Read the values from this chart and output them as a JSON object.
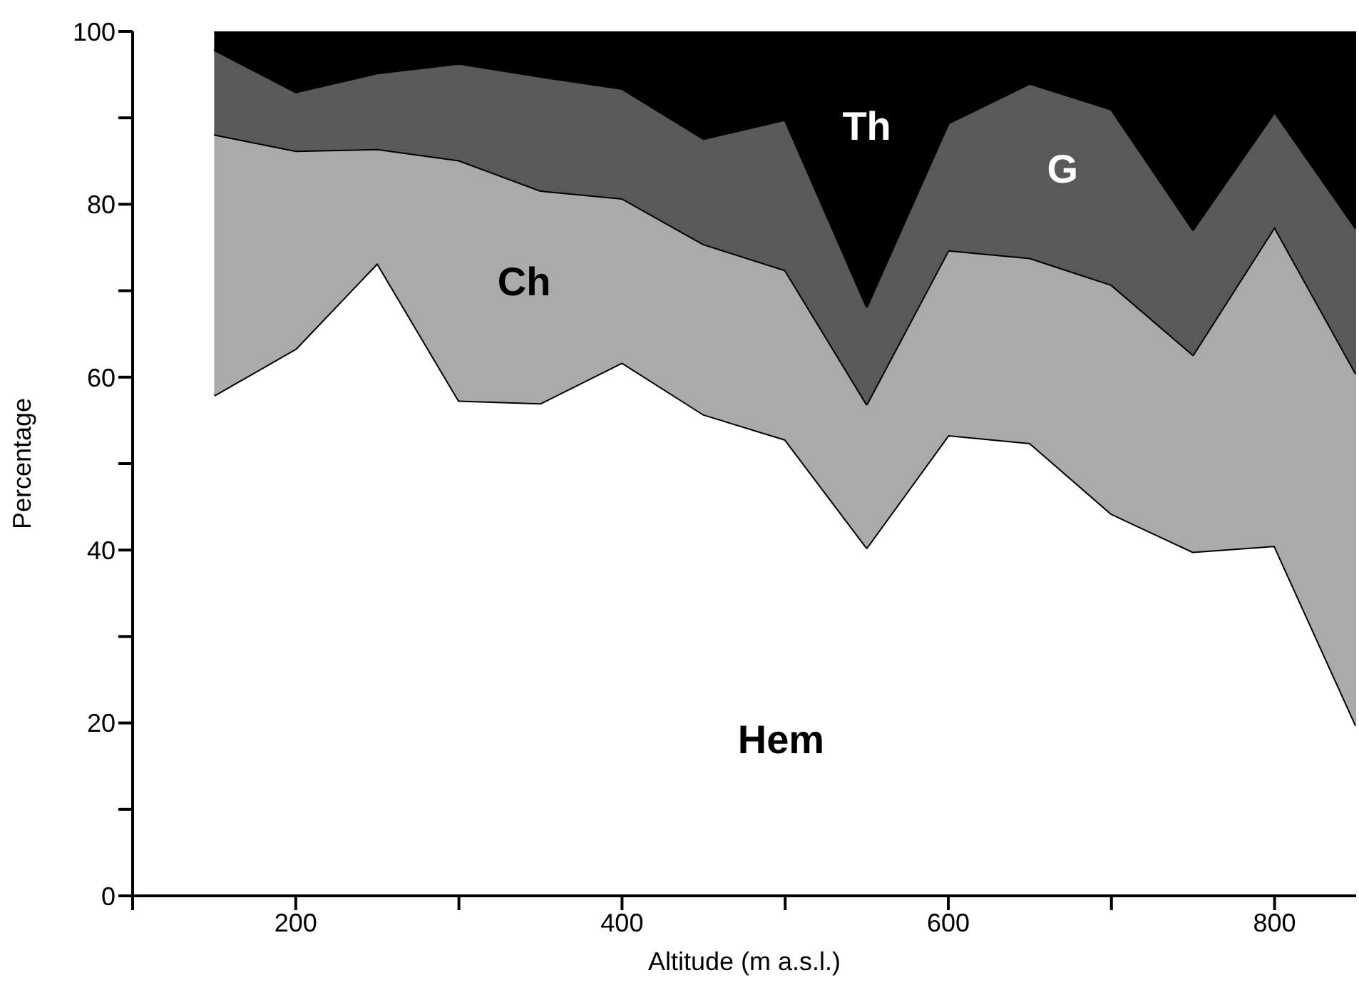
{
  "chart_data": {
    "type": "area",
    "stacked": true,
    "xlabel": "Altitude (m a.s.l.)",
    "ylabel": "Percentage",
    "x": [
      150,
      200,
      250,
      300,
      350,
      400,
      450,
      500,
      550,
      600,
      650,
      700,
      750,
      800,
      850
    ],
    "xlim": [
      100,
      850
    ],
    "xticks": [
      {
        "value": 100,
        "label": null
      },
      200,
      {
        "value": 300,
        "label": null
      },
      400,
      {
        "value": 500,
        "label": null
      },
      600,
      {
        "value": 700,
        "label": null
      },
      800
    ],
    "ylim": [
      0,
      100
    ],
    "yticks": [
      0,
      {
        "value": 10,
        "label": null
      },
      20,
      {
        "value": 30,
        "label": null
      },
      40,
      {
        "value": 50,
        "label": null
      },
      60,
      {
        "value": 70,
        "label": null
      },
      80,
      {
        "value": 90,
        "label": null
      },
      100
    ],
    "series": [
      {
        "name": "Hem",
        "color": "#ffffff",
        "values": [
          57.9,
          63.3,
          73.2,
          57.3,
          57.0,
          61.7,
          55.7,
          52.8,
          40.3,
          53.3,
          52.4,
          44.2,
          39.8,
          40.5,
          19.7
        ]
      },
      {
        "name": "Ch",
        "color": "#aaaaaa",
        "values": [
          30.2,
          22.9,
          13.2,
          27.8,
          24.6,
          19.0,
          19.7,
          19.6,
          16.6,
          21.4,
          21.4,
          26.5,
          22.8,
          36.9,
          40.7
        ]
      },
      {
        "name": "G",
        "color": "#595959",
        "values": [
          9.8,
          6.8,
          8.8,
          11.2,
          13.2,
          12.7,
          12.2,
          17.4,
          11.3,
          14.7,
          20.2,
          20.3,
          14.5,
          13.3,
          16.8
        ]
      },
      {
        "name": "Th",
        "color": "#000000",
        "values": [
          2.1,
          7.0,
          4.8,
          3.7,
          5.2,
          6.6,
          12.4,
          10.2,
          31.8,
          10.6,
          6.0,
          9.0,
          22.9,
          9.3,
          22.8
        ]
      }
    ]
  }
}
